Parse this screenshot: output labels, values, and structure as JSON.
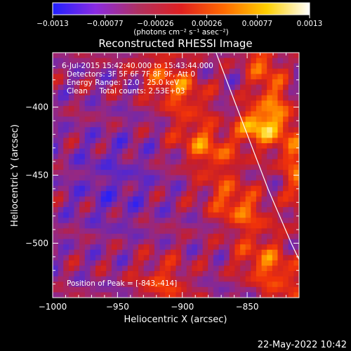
{
  "colorbar": {
    "tick_labels": [
      "-0.0013",
      "-0.00077",
      "-0.00026",
      "0.00026",
      "0.00077",
      "0.0013"
    ],
    "units_label": "(photons cm⁻² s⁻¹ asec⁻²)",
    "range": [
      -0.0013,
      0.0013
    ],
    "stops": [
      "#2020ff",
      "#8a2be2",
      "#b03060",
      "#e02020",
      "#ff6a00",
      "#ffd000",
      "#ffffff"
    ]
  },
  "chart_data": {
    "type": "heatmap",
    "title": "Reconstructed RHESSI Image",
    "xlabel": "Heliocentric X (arcsec)",
    "ylabel": "Heliocentric Y (arcsec)",
    "xlim": [
      -1000,
      -810
    ],
    "ylim": [
      -540,
      -360
    ],
    "x_ticks": [
      -1000,
      -950,
      -900,
      -850
    ],
    "y_ticks": [
      -400,
      -450,
      -500
    ],
    "x_tick_labels": [
      "−1000",
      "−950",
      "−900",
      "−850"
    ],
    "y_tick_labels": [
      "−400",
      "−450",
      "−500"
    ],
    "peak": [
      -843,
      -414
    ],
    "annotations": [
      "6-Jul-2015 15:42:40.000 to 15:43:44.000",
      "Detectors: 3F 5F 6F 7F 8F 9F, Att 0",
      "Energy Range: 12.0 - 25.0 keV",
      "Clean     Total counts: 2.53E+03",
      "Position of Peak = [-843,-414]"
    ],
    "limb_curve": [
      [
        -874,
        -360
      ],
      [
        -866,
        -380
      ],
      [
        -858,
        -400
      ],
      [
        -850,
        -420
      ],
      [
        -842,
        -440
      ],
      [
        -834,
        -460
      ],
      [
        -825,
        -480
      ],
      [
        -816,
        -500
      ],
      [
        -810,
        -512
      ]
    ]
  },
  "footer": {
    "date": "22-May-2022 10:42"
  }
}
